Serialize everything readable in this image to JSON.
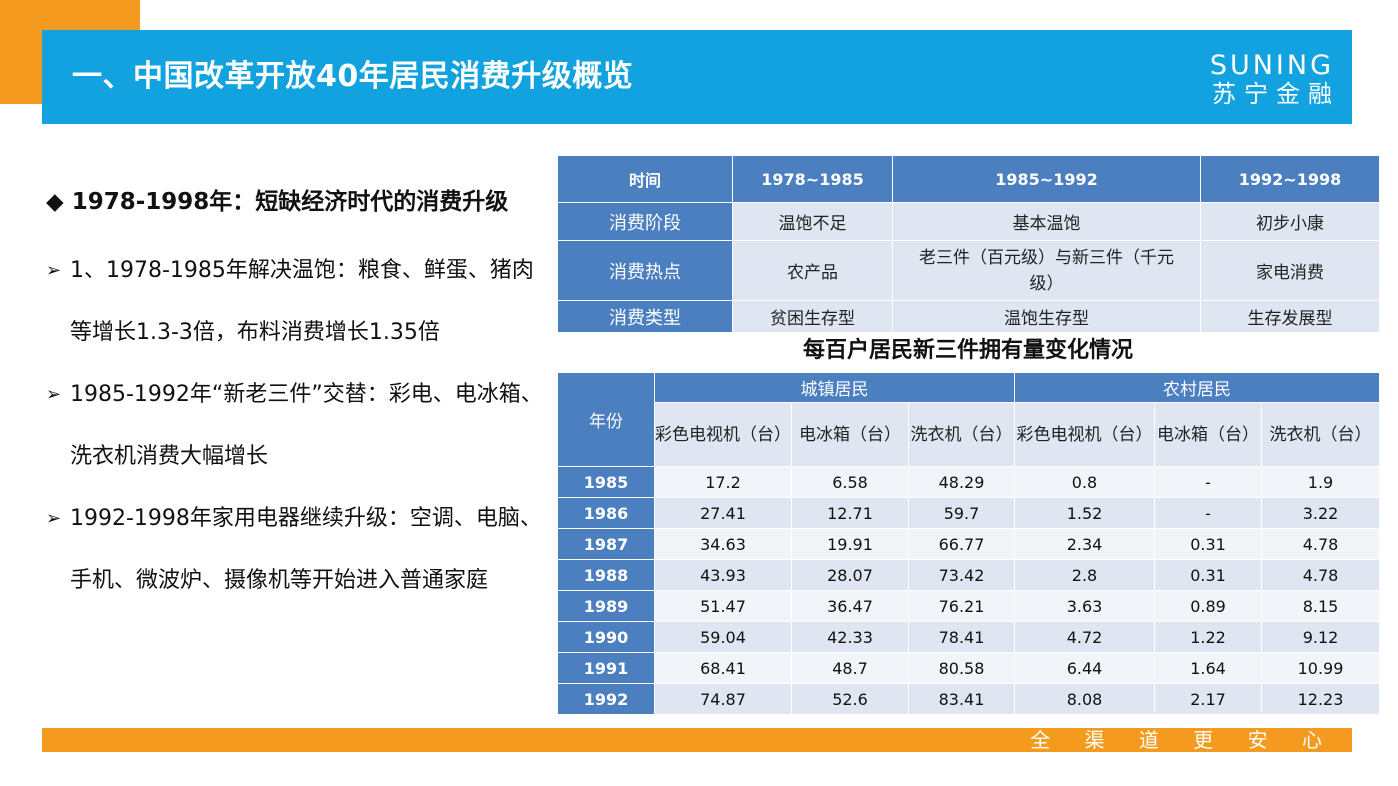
{
  "header": {
    "title": "一、中国改革开放40年居民消费升级概览",
    "logo_en": "SUNING",
    "logo_cn": "苏宁金融"
  },
  "left": {
    "heading": "1978-1998年：短缺经济时代的消费升级",
    "heading_marker": "◆",
    "bullet_marker": "➢",
    "bullets": [
      "1、1978-1985年解决温饱：粮食、鲜蛋、猪肉等增长1.3-3倍，布料消费增长1.35倍",
      "1985-1992年“新老三件”交替：彩电、电冰箱、洗衣机消费大幅增长",
      "1992-1998年家用电器继续升级：空调、电脑、手机、微波炉、摄像机等开始进入普通家庭"
    ]
  },
  "stage_table": {
    "headers": [
      "时间",
      "1978~1985",
      "1985~1992",
      "1992~1998"
    ],
    "rows": [
      {
        "label": "消费阶段",
        "cells": [
          "温饱不足",
          "基本温饱",
          "初步小康"
        ]
      },
      {
        "label": "消费热点",
        "cells": [
          "农产品",
          "老三件（百元级）与新三件（千元级）",
          "家电消费"
        ]
      },
      {
        "label": "消费类型",
        "cells": [
          "贫困生存型",
          "温饱生存型",
          "生存发展型"
        ]
      }
    ]
  },
  "ownership_table": {
    "title": "每百户居民新三件拥有量变化情况",
    "year_header": "年份",
    "group_urban": "城镇居民",
    "group_rural": "农村居民",
    "columns": [
      "彩色电视机（台）",
      "电冰箱（台）",
      "洗衣机（台）",
      "彩色电视机（台）",
      "电冰箱（台）",
      "洗衣机（台）"
    ],
    "rows": [
      {
        "year": "1985",
        "values": [
          "17.2",
          "6.58",
          "48.29",
          "0.8",
          "-",
          "1.9"
        ]
      },
      {
        "year": "1986",
        "values": [
          "27.41",
          "12.71",
          "59.7",
          "1.52",
          "-",
          "3.22"
        ]
      },
      {
        "year": "1987",
        "values": [
          "34.63",
          "19.91",
          "66.77",
          "2.34",
          "0.31",
          "4.78"
        ]
      },
      {
        "year": "1988",
        "values": [
          "43.93",
          "28.07",
          "73.42",
          "2.8",
          "0.31",
          "4.78"
        ]
      },
      {
        "year": "1989",
        "values": [
          "51.47",
          "36.47",
          "76.21",
          "3.63",
          "0.89",
          "8.15"
        ]
      },
      {
        "year": "1990",
        "values": [
          "59.04",
          "42.33",
          "78.41",
          "4.72",
          "1.22",
          "9.12"
        ]
      },
      {
        "year": "1991",
        "values": [
          "68.41",
          "48.7",
          "80.58",
          "6.44",
          "1.64",
          "10.99"
        ]
      },
      {
        "year": "1992",
        "values": [
          "74.87",
          "52.6",
          "83.41",
          "8.08",
          "2.17",
          "12.23"
        ]
      }
    ]
  },
  "footer": {
    "slogan": "全 渠 道   更 安 心"
  },
  "colors": {
    "accent_orange": "#f39a1f",
    "header_blue": "#11a2df",
    "table_blue": "#4c7fbf",
    "table_light": "#dfe6f1"
  }
}
